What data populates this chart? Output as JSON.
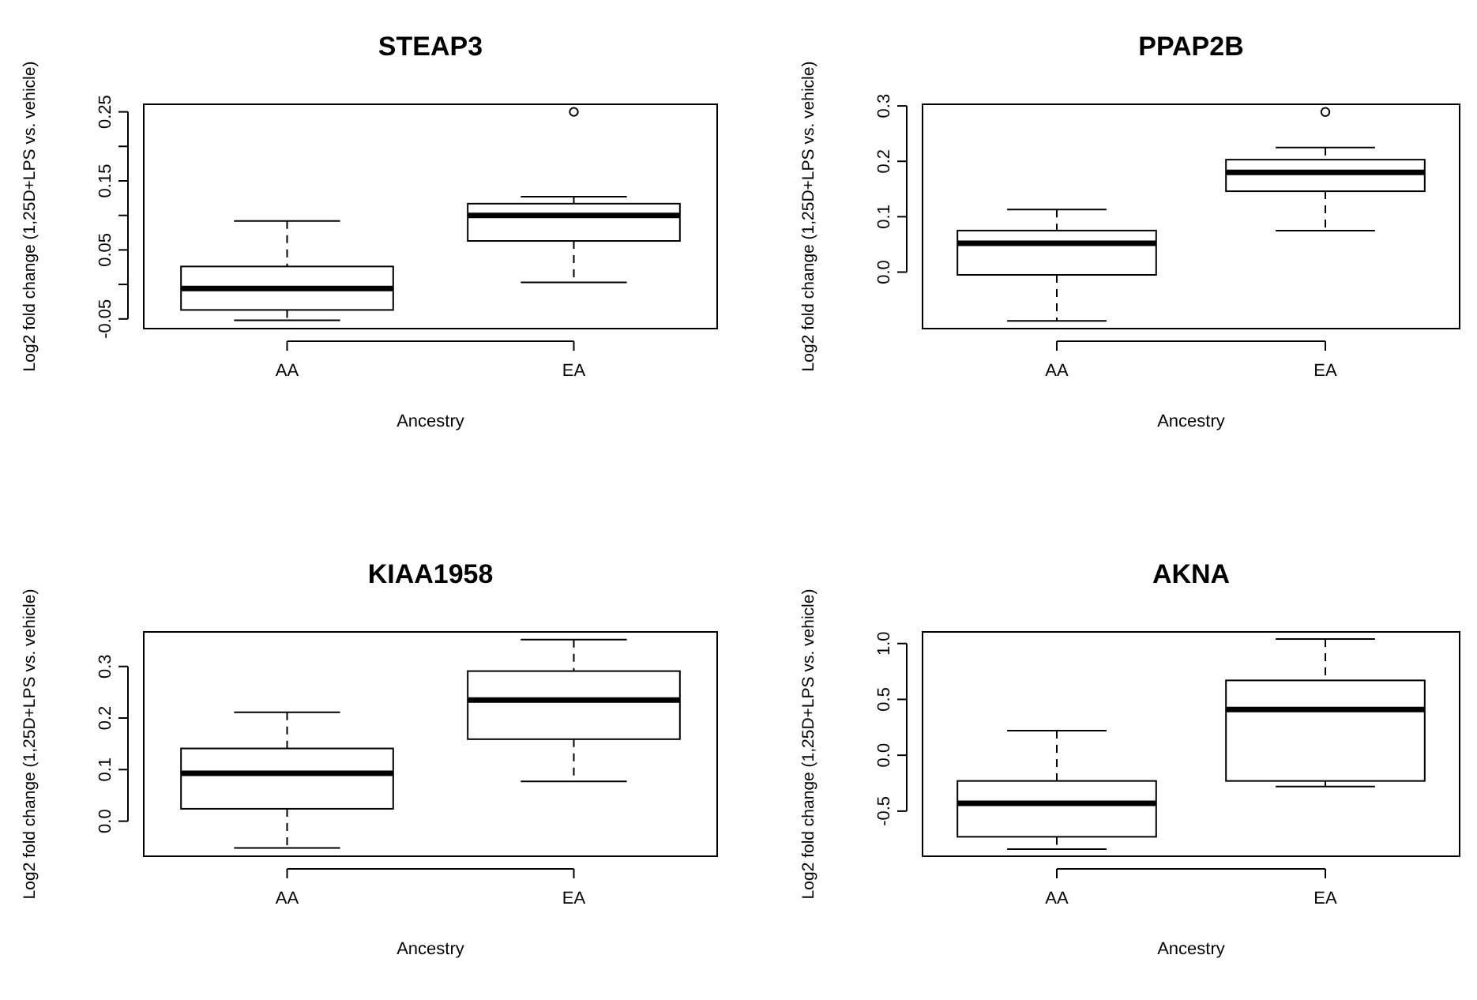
{
  "chart_data": [
    {
      "type": "box",
      "title": "STEAP3",
      "xlabel": "Ancestry",
      "ylabel": "Log2 fold change (1,25D+LPS vs. vehicle)",
      "categories": [
        "AA",
        "EA"
      ],
      "boxes": [
        {
          "low": -0.052,
          "q1": -0.037,
          "median": -0.006,
          "q3": 0.026,
          "high": 0.092
        },
        {
          "low": 0.003,
          "q1": 0.063,
          "median": 0.1,
          "q3": 0.117,
          "high": 0.127,
          "outliers": [
            0.25
          ]
        }
      ],
      "ylim": [
        -0.064,
        0.261
      ],
      "yticks": [
        -0.05,
        {
          "value": 0,
          "label": null
        },
        0.05,
        {
          "value": 0.1,
          "label": null
        },
        0.15,
        {
          "value": 0.2,
          "label": null
        },
        0.25
      ]
    },
    {
      "type": "box",
      "title": "PPAP2B",
      "xlabel": "Ancestry",
      "ylabel": "Log2 fold change (1,25D+LPS vs. vehicle)",
      "categories": [
        "AA",
        "EA"
      ],
      "boxes": [
        {
          "low": -0.088,
          "q1": -0.005,
          "median": 0.052,
          "q3": 0.075,
          "high": 0.113
        },
        {
          "low": 0.075,
          "q1": 0.146,
          "median": 0.18,
          "q3": 0.203,
          "high": 0.225,
          "outliers": [
            0.289
          ]
        }
      ],
      "ylim": [
        -0.102,
        0.303
      ],
      "yticks": [
        {
          "value": 0,
          "label": "0.0"
        },
        0.1,
        0.2,
        0.3
      ]
    },
    {
      "type": "box",
      "title": "KIAA1958",
      "xlabel": "Ancestry",
      "ylabel": "Log2 fold change (1,25D+LPS vs. vehicle)",
      "categories": [
        "AA",
        "EA"
      ],
      "boxes": [
        {
          "low": -0.052,
          "q1": 0.024,
          "median": 0.093,
          "q3": 0.141,
          "high": 0.211
        },
        {
          "low": 0.077,
          "q1": 0.159,
          "median": 0.235,
          "q3": 0.291,
          "high": 0.352
        }
      ],
      "ylim": [
        -0.068,
        0.367
      ],
      "yticks": [
        {
          "value": 0,
          "label": "0.0"
        },
        0.1,
        0.2,
        0.3
      ]
    },
    {
      "type": "box",
      "title": "AKNA",
      "xlabel": "Ancestry",
      "ylabel": "Log2 fold change (1,25D+LPS vs. vehicle)",
      "categories": [
        "AA",
        "EA"
      ],
      "boxes": [
        {
          "low": -0.84,
          "q1": -0.73,
          "median": -0.43,
          "q3": -0.23,
          "high": 0.22
        },
        {
          "low": -0.28,
          "q1": -0.23,
          "median": 0.41,
          "q3": 0.67,
          "high": 1.04
        }
      ],
      "ylim": [
        -0.904,
        1.104
      ],
      "yticks": [
        -0.5,
        {
          "value": 0,
          "label": "0.0"
        },
        0.5,
        {
          "value": 1,
          "label": "1.0"
        }
      ]
    }
  ]
}
